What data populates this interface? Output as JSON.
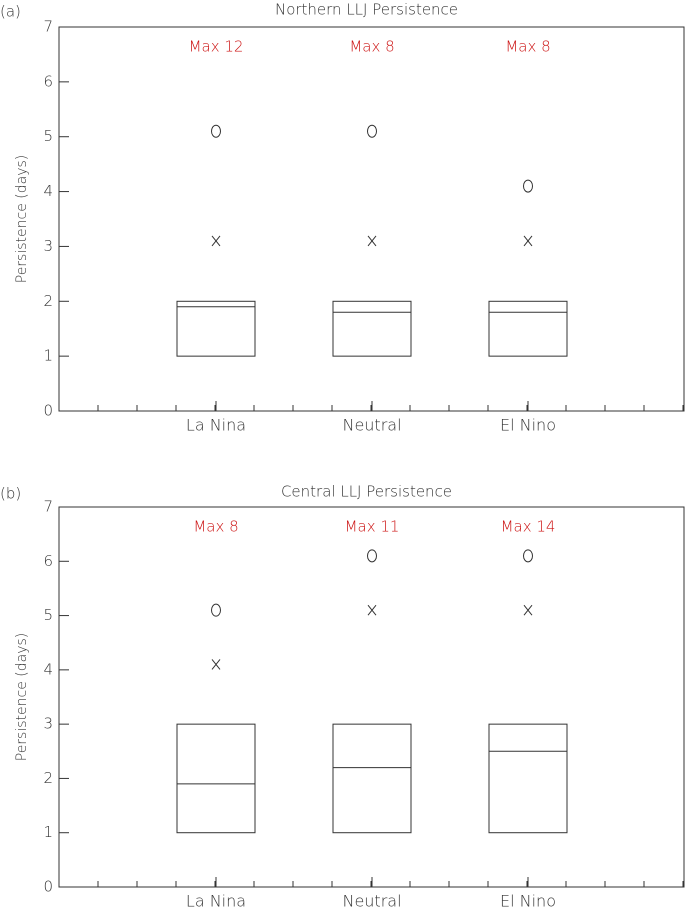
{
  "chart_data": [
    {
      "type": "box",
      "panel_label": "(a)",
      "title": "Northern LLJ Persistence",
      "ylabel": "Persistence (days)",
      "categories": [
        "La Nina",
        "Neutral",
        "El Nino"
      ],
      "q1": [
        1,
        1,
        1
      ],
      "median": [
        1.9,
        1.8,
        1.8
      ],
      "q3": [
        2,
        2,
        2
      ],
      "x_markers": [
        3.1,
        3.1,
        3.1
      ],
      "o_markers": [
        5.1,
        5.1,
        4.1
      ],
      "max_labels": [
        "Max 12",
        "Max 8",
        "Max 8"
      ],
      "max_label_color": "#cc1111",
      "color": "#333333",
      "ylim": [
        0,
        7
      ],
      "yticks": [
        0,
        1,
        2,
        3,
        4,
        5,
        6,
        7
      ]
    },
    {
      "type": "box",
      "panel_label": "(b)",
      "title": "Central LLJ Persistence",
      "ylabel": "Persistence (days)",
      "categories": [
        "La Nina",
        "Neutral",
        "El Nino"
      ],
      "q1": [
        1,
        1,
        1
      ],
      "median": [
        1.9,
        2.2,
        2.5
      ],
      "q3": [
        3,
        3,
        3
      ],
      "x_markers": [
        4.1,
        5.1,
        5.1
      ],
      "o_markers": [
        5.1,
        6.1,
        6.1
      ],
      "max_labels": [
        "Max 8",
        "Max 11",
        "Max 14"
      ],
      "max_label_color": "#cc1111",
      "color": "#333333",
      "ylim": [
        0,
        7
      ],
      "yticks": [
        0,
        1,
        2,
        3,
        4,
        5,
        6,
        7
      ]
    }
  ]
}
